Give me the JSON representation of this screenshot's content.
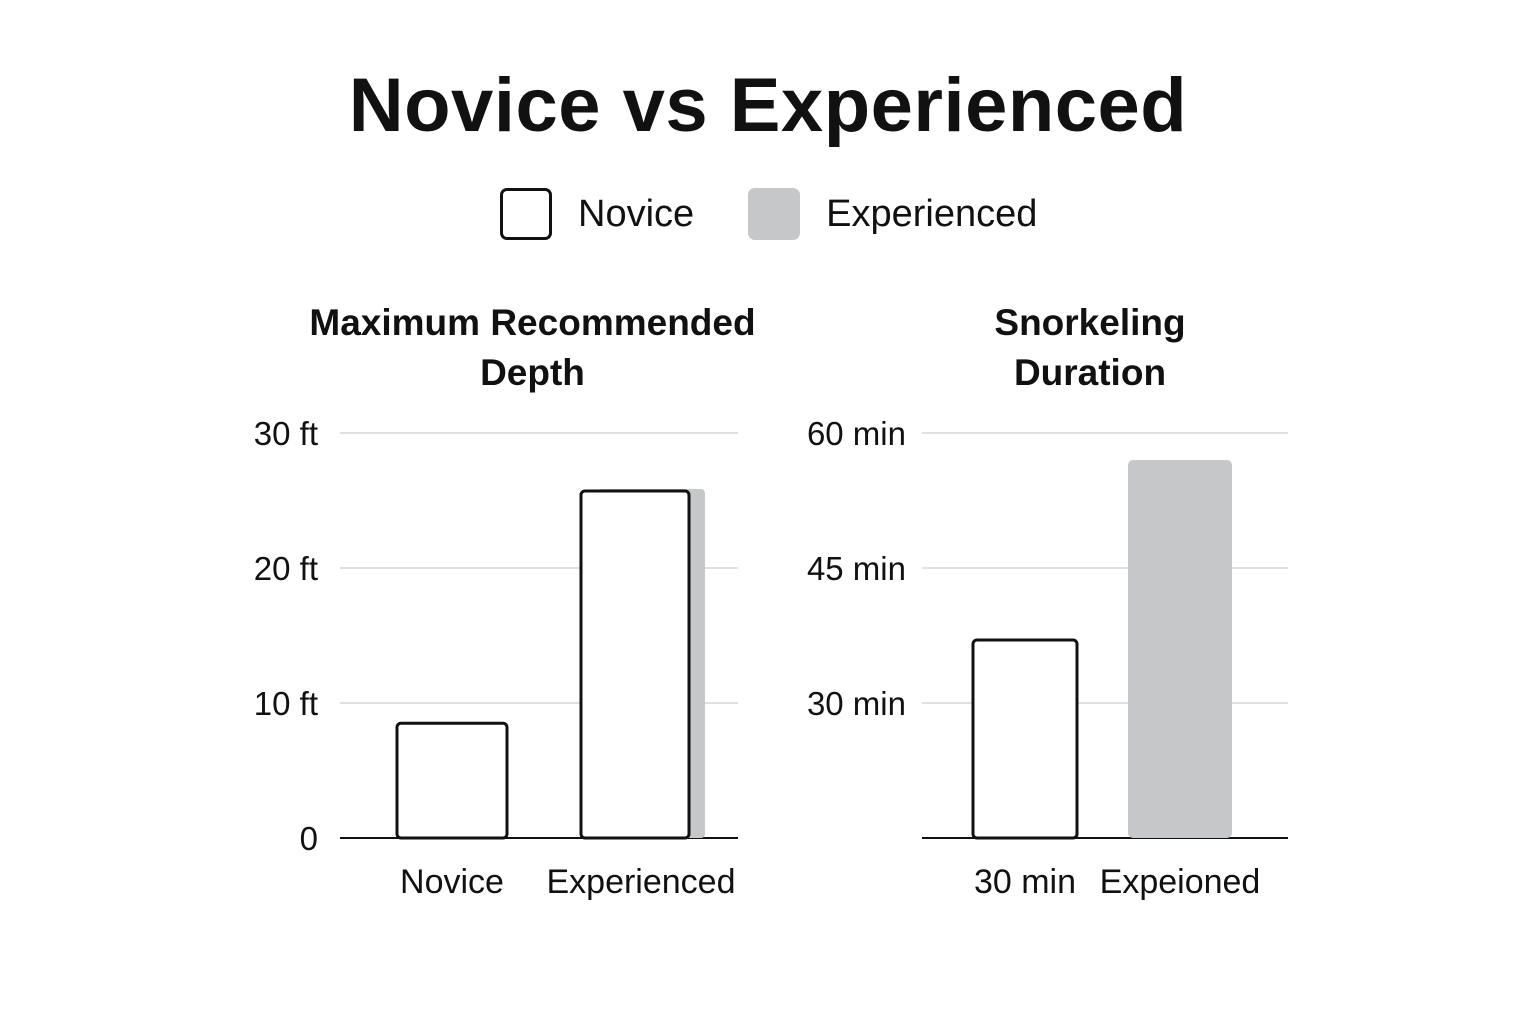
{
  "title": "Novice vs Experienced",
  "legend": [
    {
      "label": "Novice",
      "fill": "#ffffff",
      "stroke": "#111111"
    },
    {
      "label": "Experienced",
      "fill": "#c6c7c9",
      "stroke": "none"
    }
  ],
  "chart_data": [
    {
      "type": "bar",
      "title": "Maximum Recommended Depth",
      "categories": [
        "Novice",
        "Experienced"
      ],
      "series": [
        {
          "name": "Novice",
          "values": [
            8.5,
            25.7
          ]
        },
        {
          "name": "Experienced",
          "values": [
            null,
            25.7
          ]
        }
      ],
      "yticks": [
        0,
        10,
        20,
        30
      ],
      "ytick_labels": [
        "0",
        "10 ft",
        "20 ft",
        "30 ft"
      ],
      "ylim": [
        0,
        30
      ],
      "grid": true
    },
    {
      "type": "bar",
      "title": "Snorkeling Duration",
      "categories": [
        "30 min",
        "Expeioned"
      ],
      "series": [
        {
          "name": "Novice",
          "values": [
            37,
            null
          ]
        },
        {
          "name": "Experienced",
          "values": [
            null,
            57
          ]
        }
      ],
      "yticks": [
        30,
        45,
        60
      ],
      "ytick_labels": [
        "30 min",
        "45 min",
        "60 min"
      ],
      "ylim": [
        15,
        60
      ],
      "grid": true
    }
  ]
}
